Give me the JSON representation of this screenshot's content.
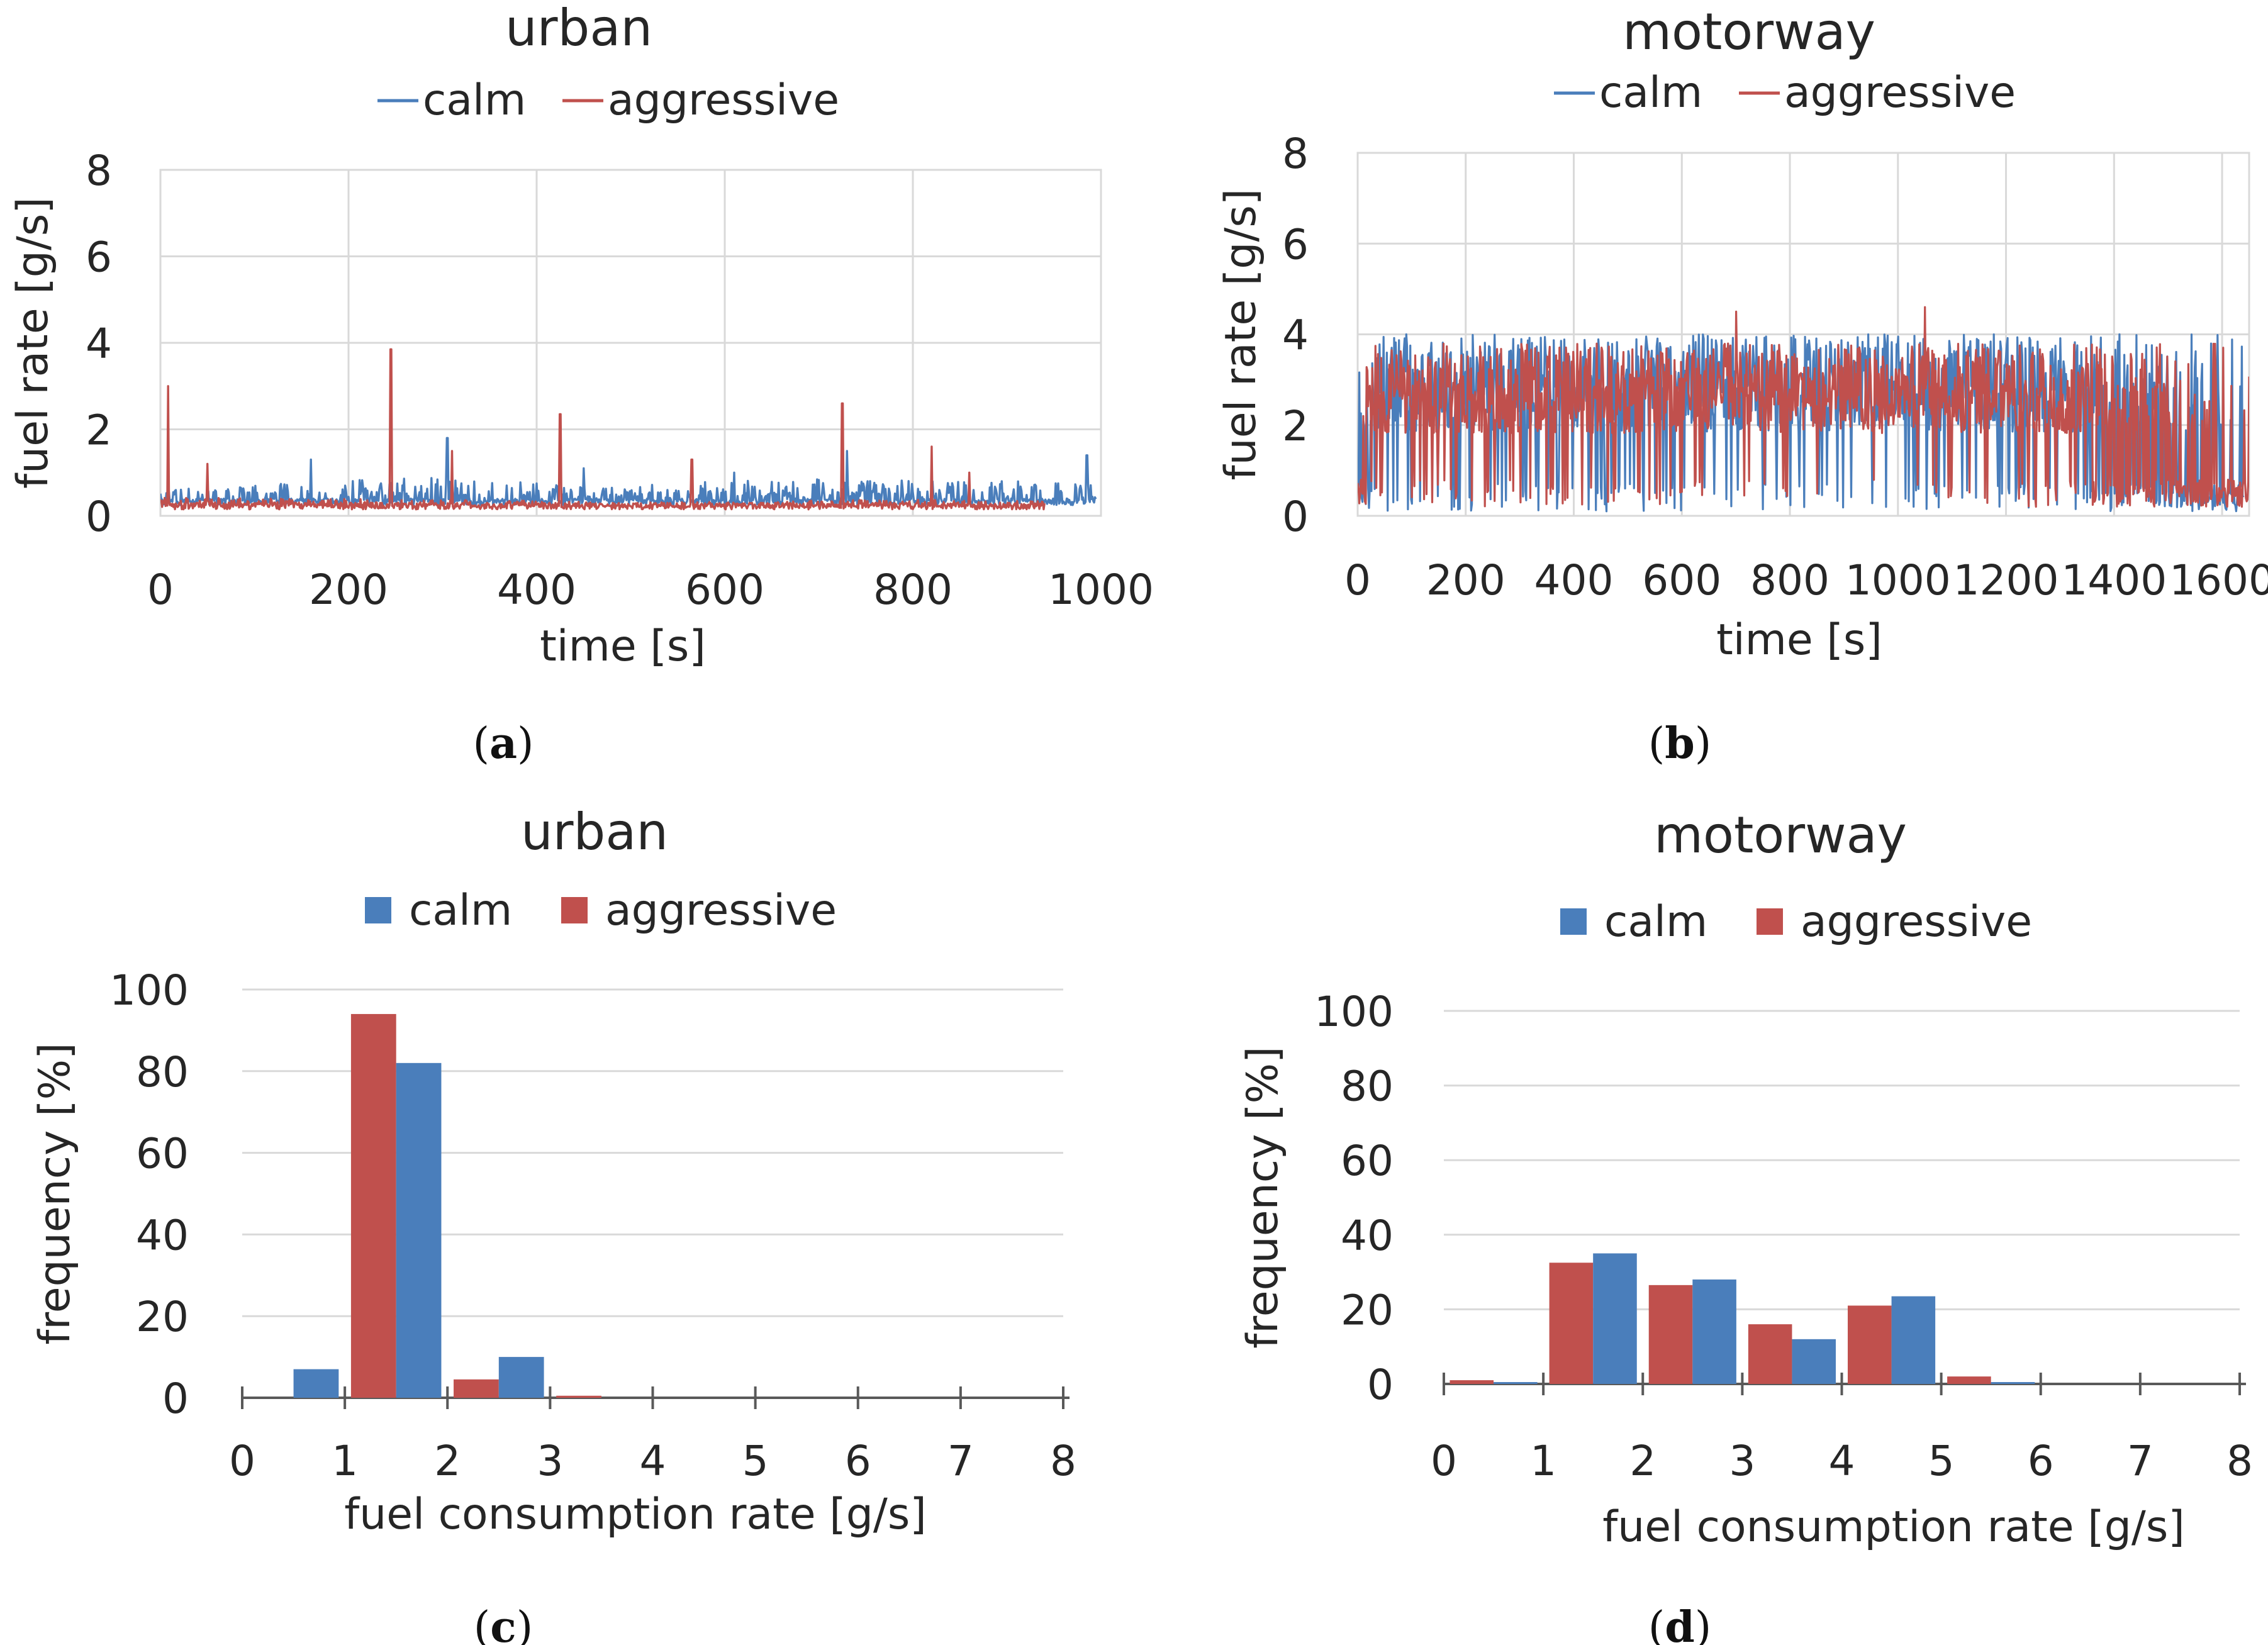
{
  "colors": {
    "calm": "#4a7ebb",
    "aggressive": "#c0504d"
  },
  "chart_data": [
    {
      "id": "a",
      "type": "line",
      "title": "urban",
      "xlabel": "time [s]",
      "ylabel": "fuel rate [g/s]",
      "xlim": [
        0,
        1000
      ],
      "ylim": [
        0,
        8
      ],
      "xticks": [
        0,
        200,
        400,
        600,
        800,
        1000
      ],
      "yticks": [
        0,
        2,
        4,
        6,
        8
      ],
      "legend": [
        "calm",
        "aggressive"
      ],
      "series": [
        {
          "name": "calm",
          "range": [
            0,
            995
          ],
          "base": 0.25,
          "amp": 0.55,
          "level": [
            [
              0,
              0.3
            ],
            [
              300,
              0.55
            ],
            [
              450,
              0.35
            ],
            [
              650,
              0.5
            ],
            [
              1000,
              0.45
            ]
          ],
          "peaks": [
            [
              160,
              1.3
            ],
            [
              305,
              1.8
            ],
            [
              450,
              1.1
            ],
            [
              610,
              1.0
            ],
            [
              730,
              1.5
            ],
            [
              985,
              1.4
            ]
          ]
        },
        {
          "name": "aggressive",
          "range": [
            0,
            940
          ],
          "base": 0.15,
          "amp": 0.35,
          "level": [
            [
              0,
              0.35
            ],
            [
              300,
              0.3
            ],
            [
              500,
              0.2
            ],
            [
              800,
              0.3
            ],
            [
              940,
              0.25
            ]
          ],
          "peaks": [
            [
              8,
              3.0
            ],
            [
              50,
              1.2
            ],
            [
              245,
              3.85
            ],
            [
              310,
              1.5
            ],
            [
              425,
              2.35
            ],
            [
              565,
              1.3
            ],
            [
              725,
              2.6
            ],
            [
              820,
              1.6
            ],
            [
              860,
              1.0
            ]
          ]
        }
      ],
      "caption": "(a)"
    },
    {
      "id": "b",
      "type": "line",
      "title": "motorway",
      "xlabel": "time [s]",
      "ylabel": "fuel rate [g/s]",
      "xlim": [
        0,
        1650
      ],
      "ylim": [
        0,
        8
      ],
      "xticks": [
        0,
        200,
        400,
        600,
        800,
        1000,
        1200,
        1400,
        1600
      ],
      "yticks": [
        0,
        2,
        4,
        6,
        8
      ],
      "legend": [
        "calm",
        "aggressive"
      ],
      "series": [
        {
          "name": "calm",
          "range": [
            0,
            1640
          ],
          "base": 0.1,
          "amp": 3.9,
          "level": [
            [
              0,
              0.2
            ],
            [
              40,
              0.9
            ],
            [
              300,
              0.85
            ],
            [
              1300,
              0.9
            ],
            [
              1450,
              0.5
            ],
            [
              1640,
              0.2
            ]
          ],
          "peaks": [
            [
              90,
              4.0
            ],
            [
              640,
              3.9
            ],
            [
              1000,
              3.95
            ],
            [
              1410,
              4.0
            ]
          ]
        },
        {
          "name": "aggressive",
          "range": [
            0,
            1650
          ],
          "base": 0.2,
          "amp": 3.6,
          "level": [
            [
              0,
              0.2
            ],
            [
              40,
              0.85
            ],
            [
              700,
              0.9
            ],
            [
              1150,
              0.95
            ],
            [
              1400,
              0.7
            ],
            [
              1650,
              0.1
            ]
          ],
          "peaks": [
            [
              700,
              4.5
            ],
            [
              1050,
              4.6
            ],
            [
              1250,
              3.6
            ]
          ]
        }
      ],
      "caption": "(b)"
    },
    {
      "id": "c",
      "type": "bar",
      "title": "urban",
      "xlabel": "fuel consumption rate [g/s]",
      "ylabel": "frequency [%]",
      "xlim": [
        0,
        8
      ],
      "ylim": [
        0,
        100
      ],
      "xticks": [
        0,
        1,
        2,
        3,
        4,
        5,
        6,
        7,
        8
      ],
      "yticks": [
        0,
        20,
        40,
        60,
        80,
        100
      ],
      "legend": [
        "calm",
        "aggressive"
      ],
      "bins": [
        "0-1",
        "1-2",
        "2-3",
        "3-4",
        "4-5",
        "5-6",
        "6-7",
        "7-8"
      ],
      "series": [
        {
          "name": "aggressive",
          "values": [
            0,
            94,
            4.5,
            0.5,
            0,
            0,
            0,
            0
          ]
        },
        {
          "name": "calm",
          "values": [
            7,
            82,
            10,
            0,
            0,
            0,
            0,
            0
          ]
        }
      ],
      "caption": "(c)"
    },
    {
      "id": "d",
      "type": "bar",
      "title": "motorway",
      "xlabel": "fuel consumption rate [g/s]",
      "ylabel": "frequency [%]",
      "xlim": [
        0,
        8
      ],
      "ylim": [
        0,
        100
      ],
      "xticks": [
        0,
        1,
        2,
        3,
        4,
        5,
        6,
        7,
        8
      ],
      "yticks": [
        0,
        20,
        40,
        60,
        80,
        100
      ],
      "legend": [
        "calm",
        "aggressive"
      ],
      "bins": [
        "0-1",
        "1-2",
        "2-3",
        "3-4",
        "4-5",
        "5-6",
        "6-7",
        "7-8"
      ],
      "series": [
        {
          "name": "aggressive",
          "values": [
            1,
            32.5,
            26.5,
            16,
            21,
            2,
            0,
            0
          ]
        },
        {
          "name": "calm",
          "values": [
            0.5,
            35,
            28,
            12,
            23.5,
            0.5,
            0,
            0
          ]
        }
      ],
      "caption": "(d)"
    }
  ]
}
